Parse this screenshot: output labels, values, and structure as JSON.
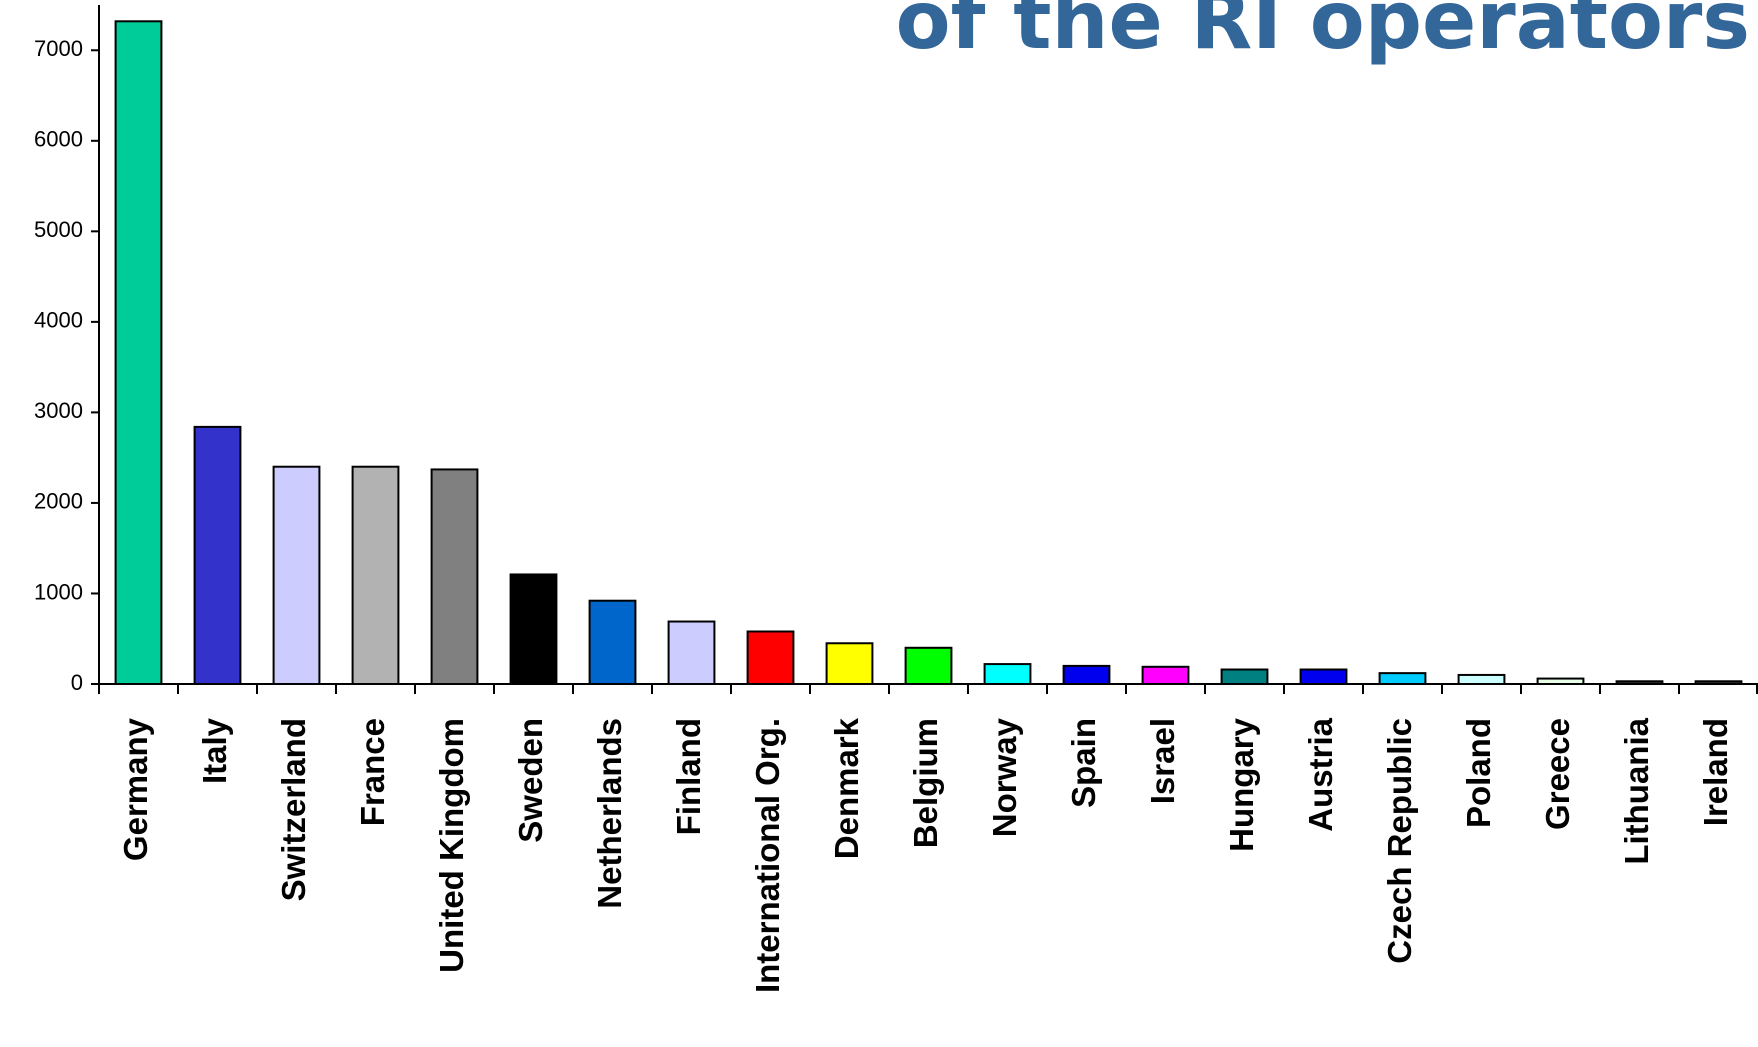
{
  "chart_data": {
    "type": "bar",
    "title": "of the RI operators",
    "categories": [
      "Germany",
      "Italy",
      "Switzerland",
      "France",
      "United Kingdom",
      "Sweden",
      "Netherlands",
      "Finland",
      "International Org.",
      "Denmark",
      "Belgium",
      "Norway",
      "Spain",
      "Israel",
      "Hungary",
      "Austria",
      "Czech Republic",
      "Poland",
      "Greece",
      "Lithuania",
      "Ireland"
    ],
    "values": [
      7320,
      2840,
      2400,
      2400,
      2370,
      1210,
      920,
      690,
      580,
      450,
      400,
      220,
      200,
      190,
      160,
      160,
      120,
      100,
      60,
      30,
      30
    ],
    "colors": [
      "#00cc99",
      "#3333cc",
      "#ccccff",
      "#b2b2b2",
      "#808080",
      "#000000",
      "#0066cc",
      "#ccccff",
      "#ff0000",
      "#ffff00",
      "#00ff00",
      "#00ffff",
      "#0000ee",
      "#ff00ff",
      "#008080",
      "#0000ee",
      "#00ccff",
      "#ccffff",
      "#e6ffe6",
      "#333333",
      "#333333"
    ],
    "ylim": [
      0,
      7500
    ],
    "yticks": [
      0,
      1000,
      2000,
      3000,
      4000,
      5000,
      6000,
      7000
    ],
    "grid": false
  }
}
